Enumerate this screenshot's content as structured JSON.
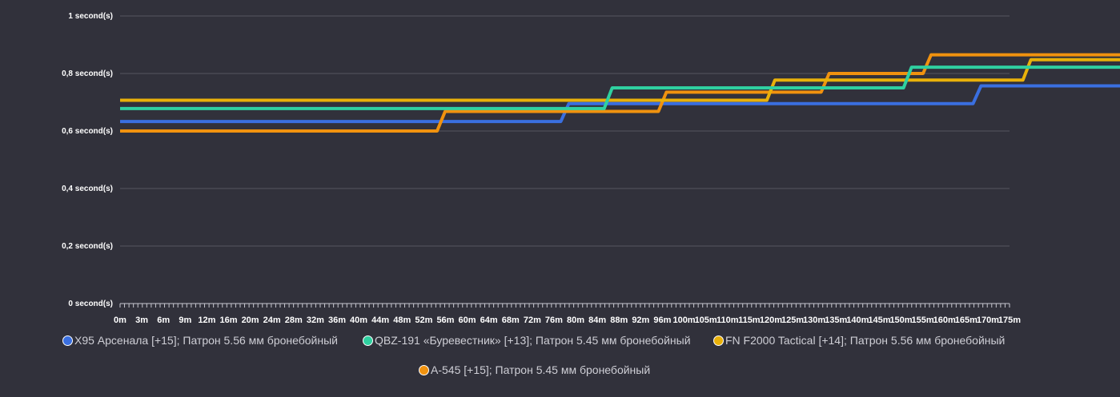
{
  "chart_data": {
    "type": "line",
    "line_shape": "step",
    "title": "",
    "xlabel": "",
    "ylabel": "",
    "ylim": [
      0,
      1
    ],
    "y_ticks": [
      {
        "value": 0,
        "label": "0 second(s)"
      },
      {
        "value": 0.2,
        "label": "0,2 second(s)"
      },
      {
        "value": 0.4,
        "label": "0,4 second(s)"
      },
      {
        "value": 0.6,
        "label": "0,6 second(s)"
      },
      {
        "value": 0.8,
        "label": "0,8 second(s)"
      },
      {
        "value": 1,
        "label": "1 second(s)"
      }
    ],
    "categories": [
      "0m",
      "3m",
      "6m",
      "9m",
      "12m",
      "16m",
      "20m",
      "24m",
      "28m",
      "32m",
      "36m",
      "40m",
      "44m",
      "48m",
      "52m",
      "56m",
      "60m",
      "64m",
      "68m",
      "72m",
      "76m",
      "80m",
      "84m",
      "88m",
      "92m",
      "96m",
      "100m",
      "105m",
      "110m",
      "115m",
      "120m",
      "125m",
      "130m",
      "135m",
      "140m",
      "145m",
      "150m",
      "155m",
      "160m",
      "165m",
      "170m",
      "175m"
    ],
    "grid": true,
    "legend_position": "bottom",
    "series": [
      {
        "name": "X95 Арсенала [+15]; Патрон 5.56 мм бронебойный",
        "color": "#3a6fe0",
        "steps": [
          [
            0,
            0.633
          ],
          [
            20.5,
            0.695
          ],
          [
            39.5,
            0.757
          ],
          [
            140,
            0.757
          ]
        ]
      },
      {
        "name": "QBZ-191 «Буревестник» [+13]; Патрон 5.45 мм бронебойный",
        "color": "#2fd0a0",
        "steps": [
          [
            0,
            0.678
          ],
          [
            22.5,
            0.75
          ],
          [
            36.3,
            0.822
          ],
          [
            48,
            0.9
          ],
          [
            154,
            0.9
          ]
        ]
      },
      {
        "name": "FN F2000 Tactical [+14]; Патрон 5.56 мм бронебойный",
        "color": "#e9b10a",
        "steps": [
          [
            0,
            0.707
          ],
          [
            30,
            0.777
          ],
          [
            41.8,
            0.848
          ],
          [
            154,
            0.848
          ]
        ]
      },
      {
        "name": "А-545 [+15]; Патрон 5.45 мм бронебойный",
        "color": "#f0920f",
        "steps": [
          [
            0,
            0.6
          ],
          [
            14.8,
            0.668
          ],
          [
            25,
            0.735
          ],
          [
            32.5,
            0.8
          ],
          [
            37.2,
            0.865
          ],
          [
            136,
            0.865
          ]
        ]
      }
    ]
  }
}
